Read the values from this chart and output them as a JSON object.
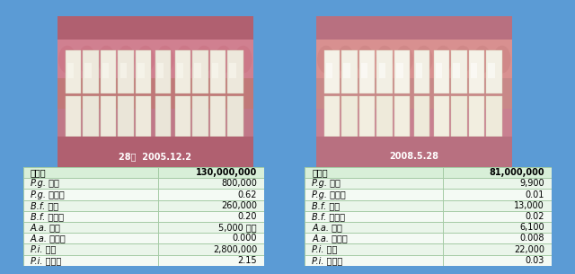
{
  "background_color": "#5b9bd5",
  "inner_bg": "#ffffff",
  "table1_header": [
    "総菌数",
    "130,000,000"
  ],
  "table1_rows": [
    [
      "P.g. 菌数",
      "800,000"
    ],
    [
      "P.g. 菌比率",
      "0.62"
    ],
    [
      "B.f. 菌数",
      "260,000"
    ],
    [
      "B.f. 菌比率",
      "0.20"
    ],
    [
      "A.a. 菌数",
      "5,000 未満"
    ],
    [
      "A.a. 菌比率",
      "0.000"
    ],
    [
      "P.i. 菌数",
      "2,800,000"
    ],
    [
      "P.i. 菌比率",
      "2.15"
    ]
  ],
  "table2_header": [
    "総菌数",
    "81,000,000"
  ],
  "table2_rows": [
    [
      "P.g. 菌数",
      "9,900"
    ],
    [
      "P.g. 菌比率",
      "0.01"
    ],
    [
      "B.f. 菌数",
      "13,000"
    ],
    [
      "B.f. 菌比率",
      "0.02"
    ],
    [
      "A.a. 菌数",
      "6,100"
    ],
    [
      "A.a. 菌比率",
      "0.008"
    ],
    [
      "P.i. 菌数",
      "22,000"
    ],
    [
      "P.i. 菌比率",
      "0.03"
    ]
  ],
  "caption1": "28歳  2005.12.2",
  "caption2": "2008.5.28",
  "header_bg": "#d8efd8",
  "row_bg_alt": "#eaf5ea",
  "row_bg_norm": "#f4faf4",
  "border_color": "#a0c8a0",
  "table_font_size": 7.0,
  "col_split": 0.56,
  "photo1_bg_top": "#c87880",
  "photo1_bg_bot": "#b86870",
  "photo2_bg_top": "#d09090",
  "photo2_bg_bot": "#c08080",
  "teeth_color1": "#f0ece0",
  "teeth_color2": "#f5f2e8"
}
